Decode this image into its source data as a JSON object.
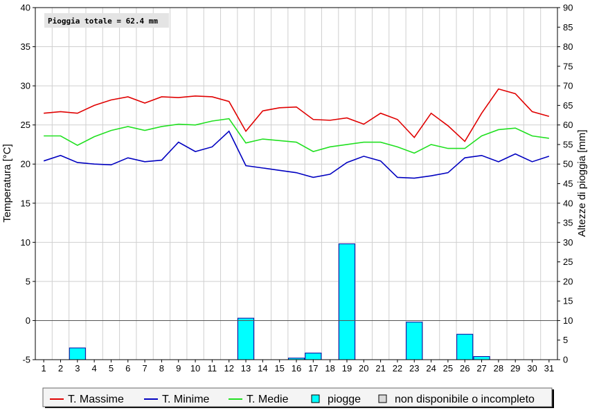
{
  "chart_data": {
    "type": "line",
    "annotation": "Pioggia totale = 62.4 mm",
    "ylabel_left": "Temperatura [°C]",
    "ylabel_right": "Altezze di pioggia [mm]",
    "ylim_left": [
      -5,
      40
    ],
    "ylim_right": [
      0,
      90
    ],
    "yticks_left": [
      "-5",
      "0",
      "5",
      "10",
      "15",
      "20",
      "25",
      "30",
      "35",
      "40"
    ],
    "yticks_right": [
      "0",
      "5",
      "10",
      "15",
      "20",
      "25",
      "30",
      "35",
      "40",
      "45",
      "50",
      "55",
      "60",
      "65",
      "70",
      "75",
      "80",
      "85",
      "90"
    ],
    "categories": [
      "1",
      "2",
      "3",
      "4",
      "5",
      "6",
      "7",
      "8",
      "9",
      "10",
      "11",
      "12",
      "13",
      "14",
      "15",
      "16",
      "17",
      "18",
      "19",
      "20",
      "21",
      "22",
      "23",
      "24",
      "25",
      "26",
      "27",
      "28",
      "29",
      "30",
      "31"
    ],
    "grid": true,
    "legend_position": "bottom",
    "series": [
      {
        "name": "T. Massime",
        "color": "#e00000",
        "axis": "left",
        "values": [
          26.5,
          26.7,
          26.5,
          27.5,
          28.2,
          28.6,
          27.8,
          28.6,
          28.5,
          28.7,
          28.6,
          28.0,
          24.2,
          26.8,
          27.2,
          27.3,
          25.7,
          25.6,
          25.9,
          25.1,
          26.5,
          25.7,
          23.4,
          26.5,
          24.9,
          22.9,
          26.5,
          29.6,
          29.0,
          26.7,
          26.1
        ]
      },
      {
        "name": "T. Minime",
        "color": "#0000c0",
        "axis": "left",
        "values": [
          20.4,
          21.1,
          20.2,
          20.0,
          19.9,
          20.8,
          20.3,
          20.5,
          22.8,
          21.6,
          22.2,
          24.2,
          19.8,
          19.5,
          19.2,
          18.9,
          18.3,
          18.7,
          20.2,
          21.0,
          20.4,
          18.3,
          18.2,
          18.5,
          18.9,
          20.8,
          21.1,
          20.3,
          21.3,
          20.3,
          21.0
        ]
      },
      {
        "name": "T. Medie",
        "color": "#20e020",
        "axis": "left",
        "values": [
          23.6,
          23.6,
          22.4,
          23.5,
          24.3,
          24.8,
          24.3,
          24.8,
          25.1,
          25.0,
          25.5,
          25.8,
          22.7,
          23.2,
          23.0,
          22.8,
          21.6,
          22.2,
          22.5,
          22.8,
          22.8,
          22.2,
          21.4,
          22.5,
          22.0,
          22.0,
          23.6,
          24.4,
          24.6,
          23.6,
          23.3
        ]
      },
      {
        "name": "piogge",
        "color": "#00ffff",
        "axis": "right",
        "kind": "bar",
        "values": [
          0,
          0,
          3.0,
          0,
          0,
          0,
          0,
          0,
          0,
          0,
          0,
          0,
          10.6,
          0,
          0,
          0.4,
          1.7,
          0,
          29.6,
          0,
          0,
          0,
          9.6,
          0,
          0,
          6.5,
          0.8,
          0,
          0,
          0,
          0
        ]
      }
    ],
    "legend": [
      {
        "label": "T. Massime",
        "kind": "line",
        "color": "#e00000"
      },
      {
        "label": "T. Minime",
        "kind": "line",
        "color": "#0000c0"
      },
      {
        "label": "T. Medie",
        "kind": "line",
        "color": "#20e020"
      },
      {
        "label": "piogge",
        "kind": "box",
        "color": "#00ffff"
      },
      {
        "label": "non disponibile o incompleto",
        "kind": "box",
        "color": "#d8d8d8"
      }
    ]
  }
}
